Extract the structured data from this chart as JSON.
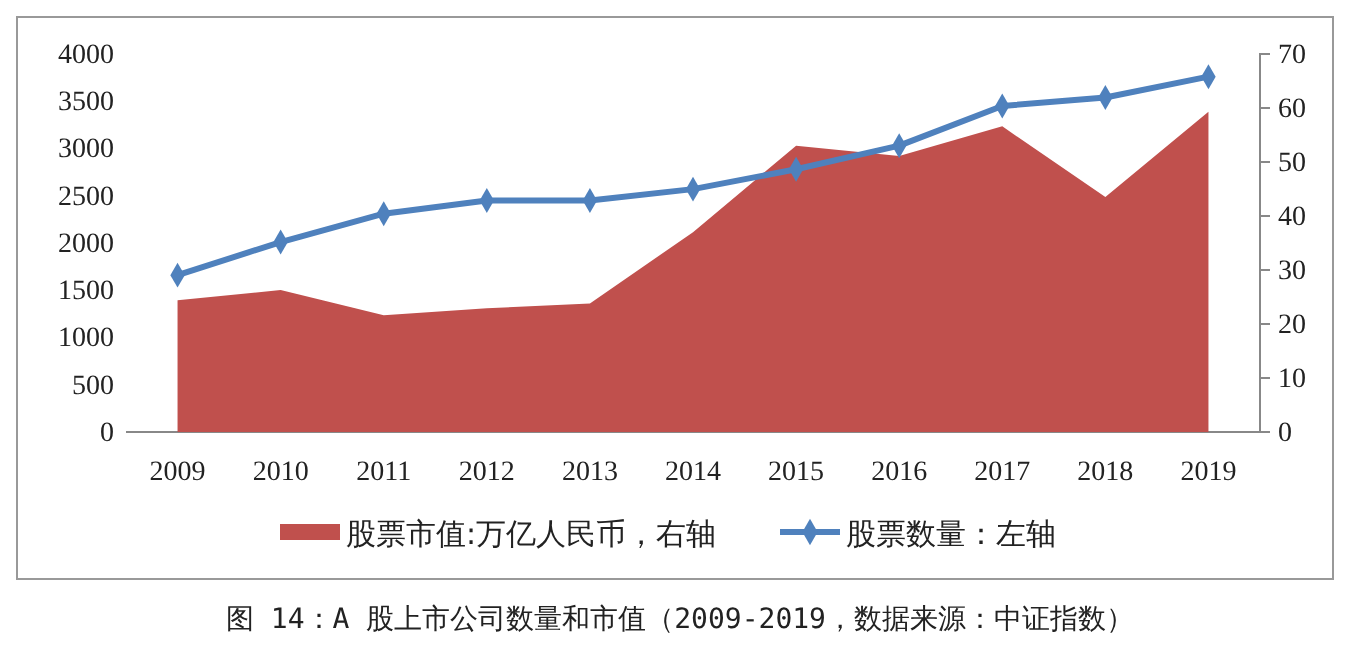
{
  "chart_data": {
    "type": "line",
    "categories": [
      "2009",
      "2010",
      "2011",
      "2012",
      "2013",
      "2014",
      "2015",
      "2016",
      "2017",
      "2018",
      "2019"
    ],
    "series": [
      {
        "name": "股票市值:万亿人民币，右轴",
        "type": "area",
        "axis": "y2",
        "color": "#c0504d",
        "values": [
          24.4,
          26.3,
          21.6,
          22.9,
          23.8,
          37,
          53,
          51.1,
          56.6,
          43.5,
          59.3
        ]
      },
      {
        "name": "股票数量：左轴",
        "color": "#4f81bd",
        "values": [
          1660,
          2010,
          2310,
          2450,
          2450,
          2570,
          2780,
          3030,
          3450,
          3540,
          3760
        ],
        "marker": "diamond"
      }
    ],
    "ylim": [
      0,
      4000
    ],
    "yticks": [
      0,
      500,
      1000,
      1500,
      2000,
      2500,
      3000,
      3500,
      4000
    ],
    "y2lim": [
      0,
      70
    ],
    "y2ticks": [
      0,
      10,
      20,
      30,
      40,
      50,
      60,
      70
    ],
    "legend": "bottom",
    "grid": false,
    "annotations": [
      "图 14：A 股上市公司数量和市值（2009-2019，数据来源：中证指数）"
    ]
  }
}
